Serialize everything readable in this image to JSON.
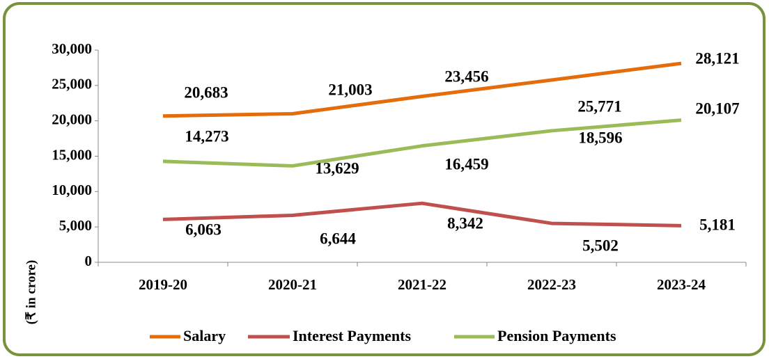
{
  "chart_data": {
    "type": "line",
    "y_label": "(₹ in crore)",
    "categories": [
      "2019-20",
      "2020-21",
      "2021-22",
      "2022-23",
      "2023-24"
    ],
    "series": [
      {
        "name": "Salary",
        "color": "#e46c0a",
        "values": [
          20683,
          21003,
          23456,
          25771,
          28121
        ],
        "value_labels": [
          "20,683",
          "21,003",
          "23,456",
          "25,771",
          "28,121"
        ]
      },
      {
        "name": "Interest Payments",
        "color": "#c0504d",
        "values": [
          6063,
          6644,
          8342,
          5502,
          5181
        ],
        "value_labels": [
          "6,063",
          "6,644",
          "8,342",
          "5,502",
          "5,181"
        ]
      },
      {
        "name": "Pension Payments",
        "color": "#9bbb59",
        "values": [
          14273,
          13629,
          16459,
          18596,
          20107
        ],
        "value_labels": [
          "14,273",
          "13,629",
          "16,459",
          "18,596",
          "20,107"
        ]
      }
    ],
    "ylim": [
      0,
      30000
    ],
    "yticks": [
      0,
      {
        "value": 5000,
        "label": "5,000"
      },
      {
        "value": 10000,
        "label": "10,000"
      },
      {
        "value": 15000,
        "label": "15,000"
      },
      {
        "value": 20000,
        "label": "20,000"
      },
      {
        "value": 25000,
        "label": "25,000"
      },
      {
        "value": 30000,
        "label": "30,000"
      }
    ],
    "legend": "bottom"
  }
}
